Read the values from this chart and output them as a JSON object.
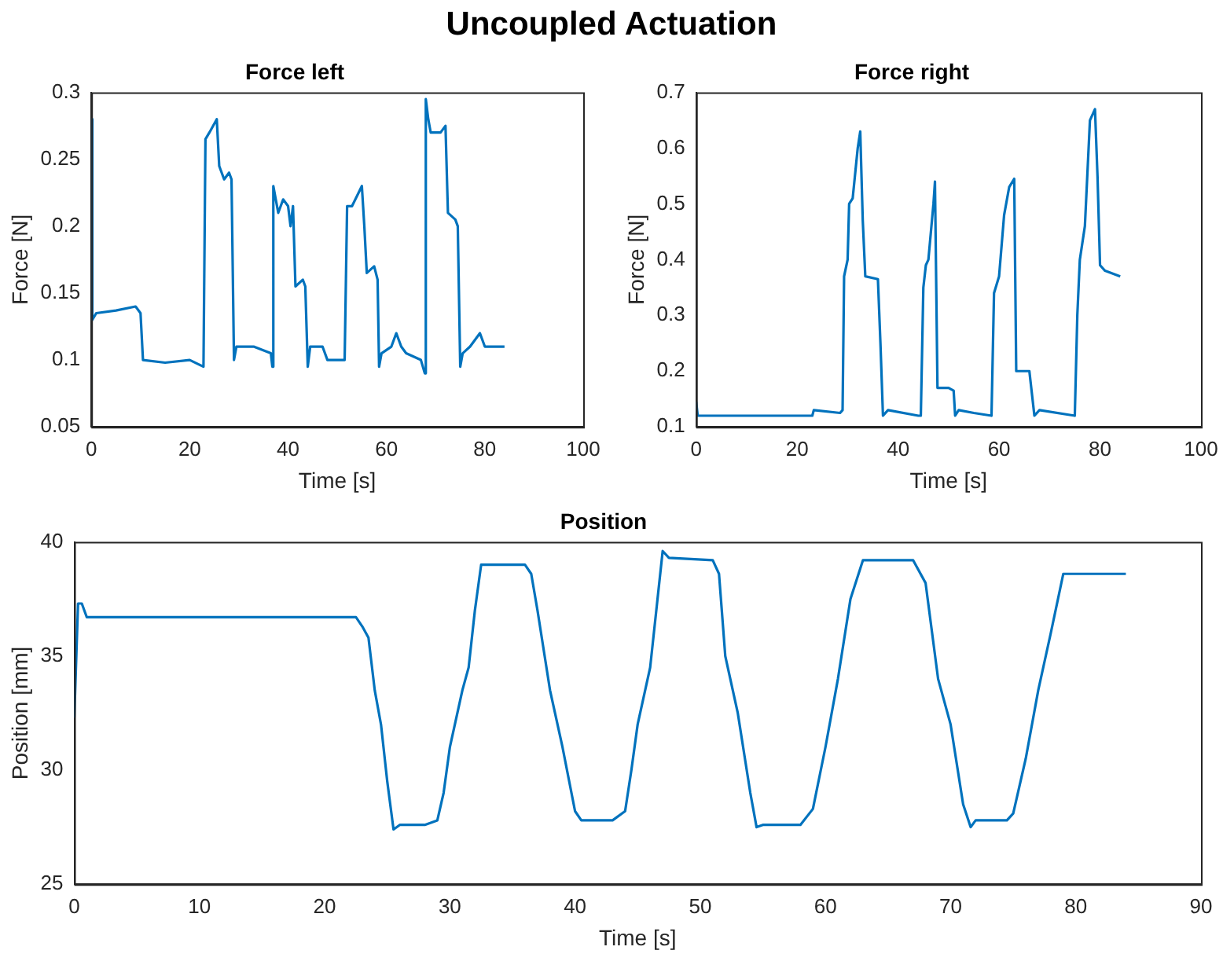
{
  "chart_data": [
    {
      "type": "other",
      "title": "Uncoupled Actuation"
    },
    {
      "type": "line",
      "title": "Force left",
      "xlabel": "Time [s]",
      "ylabel": "Force [N]",
      "xlim": [
        0,
        100
      ],
      "xticks": [
        0,
        20,
        40,
        60,
        80,
        100
      ],
      "ylim": [
        0.05,
        0.3
      ],
      "yticks": [
        0.05,
        0.1,
        0.15,
        0.2,
        0.25,
        0.3
      ],
      "grid": false,
      "legend": false,
      "series": [
        {
          "color": "#0072bd",
          "x": [
            0,
            0.2,
            1,
            5,
            9,
            10,
            10.5,
            15,
            20,
            22.8,
            23.2,
            24,
            25.5,
            26,
            27,
            28,
            28.5,
            29,
            29.5,
            33,
            36.5,
            36.8,
            37,
            38,
            39,
            40,
            40.5,
            41,
            41.5,
            43,
            43.5,
            44,
            44.5,
            47,
            48,
            51,
            51.5,
            52,
            53,
            55,
            55.5,
            56,
            57.5,
            58.2,
            58.5,
            59,
            61,
            62,
            63,
            64,
            67,
            67.8,
            68,
            68.5,
            69,
            71,
            72,
            72.5,
            74,
            74.5,
            75,
            75.5,
            77,
            78,
            79,
            80,
            82,
            84
          ],
          "values": [
            0.28,
            0.13,
            0.135,
            0.137,
            0.14,
            0.135,
            0.1,
            0.098,
            0.1,
            0.095,
            0.265,
            0.27,
            0.28,
            0.245,
            0.235,
            0.24,
            0.235,
            0.1,
            0.11,
            0.11,
            0.105,
            0.095,
            0.23,
            0.21,
            0.22,
            0.215,
            0.2,
            0.215,
            0.155,
            0.16,
            0.155,
            0.095,
            0.11,
            0.11,
            0.1,
            0.1,
            0.1,
            0.215,
            0.215,
            0.23,
            0.2,
            0.165,
            0.17,
            0.16,
            0.095,
            0.105,
            0.11,
            0.12,
            0.11,
            0.105,
            0.1,
            0.09,
            0.295,
            0.28,
            0.27,
            0.27,
            0.275,
            0.21,
            0.205,
            0.2,
            0.095,
            0.105,
            0.11,
            0.115,
            0.12,
            0.11,
            0.11,
            0.11
          ]
        }
      ]
    },
    {
      "type": "line",
      "title": "Force right",
      "xlabel": "Time [s]",
      "ylabel": "Force [N]",
      "xlim": [
        0,
        100
      ],
      "xticks": [
        0,
        20,
        40,
        60,
        80,
        100
      ],
      "ylim": [
        0.1,
        0.7
      ],
      "yticks": [
        0.1,
        0.2,
        0.3,
        0.4,
        0.5,
        0.6,
        0.7
      ],
      "grid": false,
      "legend": false,
      "series": [
        {
          "color": "#0072bd",
          "x": [
            0,
            0.3,
            10,
            20,
            23,
            23.3,
            28.5,
            29,
            29.3,
            30,
            30.3,
            31,
            32,
            32.5,
            33,
            33.5,
            36,
            36.5,
            37,
            38,
            44,
            44.5,
            45,
            45.5,
            46,
            47,
            47.3,
            47.8,
            50,
            51,
            51.3,
            52,
            55,
            58.5,
            59,
            60,
            61,
            62,
            63,
            63.4,
            66,
            67,
            68,
            75,
            75.5,
            76,
            77,
            78,
            79,
            79.5,
            80,
            81,
            84
          ],
          "values": [
            0.145,
            0.12,
            0.12,
            0.12,
            0.12,
            0.13,
            0.125,
            0.13,
            0.37,
            0.4,
            0.5,
            0.51,
            0.6,
            0.63,
            0.47,
            0.37,
            0.365,
            0.25,
            0.12,
            0.13,
            0.12,
            0.12,
            0.35,
            0.39,
            0.4,
            0.5,
            0.54,
            0.17,
            0.17,
            0.165,
            0.12,
            0.13,
            0.125,
            0.12,
            0.34,
            0.37,
            0.48,
            0.53,
            0.545,
            0.2,
            0.2,
            0.12,
            0.13,
            0.12,
            0.3,
            0.4,
            0.46,
            0.65,
            0.67,
            0.55,
            0.39,
            0.38,
            0.37
          ]
        }
      ]
    },
    {
      "type": "line",
      "title": "Position",
      "xlabel": "Time [s]",
      "ylabel": "Position [mm]",
      "xlim": [
        0,
        90
      ],
      "xticks": [
        0,
        10,
        20,
        30,
        40,
        50,
        60,
        70,
        80,
        90
      ],
      "ylim": [
        25,
        40
      ],
      "yticks": [
        25,
        30,
        35,
        40
      ],
      "grid": false,
      "legend": false,
      "series": [
        {
          "color": "#0072bd",
          "x": [
            0,
            0.3,
            0.6,
            1,
            10,
            22.5,
            23,
            23.5,
            24,
            24.5,
            25,
            25.5,
            26,
            28,
            29,
            29.5,
            30,
            31,
            31.5,
            32,
            32.5,
            36,
            36.5,
            37,
            38,
            39,
            40,
            40.5,
            43,
            44,
            44.5,
            45,
            46,
            47,
            47.5,
            51,
            51.5,
            52,
            53,
            54,
            54.5,
            55,
            58,
            59,
            60,
            61,
            62,
            63,
            67,
            68,
            69,
            70,
            71,
            71.6,
            72,
            74.5,
            75,
            76,
            77,
            78,
            79,
            84
          ],
          "values": [
            32.3,
            37.3,
            37.3,
            36.7,
            36.7,
            36.7,
            36.3,
            35.8,
            33.5,
            32,
            29.5,
            27.4,
            27.6,
            27.6,
            27.8,
            29,
            31,
            33.5,
            34.5,
            37,
            39,
            39,
            38.6,
            37,
            33.5,
            31,
            28.2,
            27.8,
            27.8,
            28.2,
            30,
            32,
            34.5,
            39.6,
            39.3,
            39.2,
            38.6,
            35,
            32.5,
            29,
            27.5,
            27.6,
            27.6,
            28.3,
            31,
            34,
            37.5,
            39.2,
            39.2,
            38.2,
            34,
            32,
            28.5,
            27.5,
            27.8,
            27.8,
            28.1,
            30.5,
            33.5,
            36,
            38.6,
            38.6
          ]
        }
      ]
    }
  ]
}
